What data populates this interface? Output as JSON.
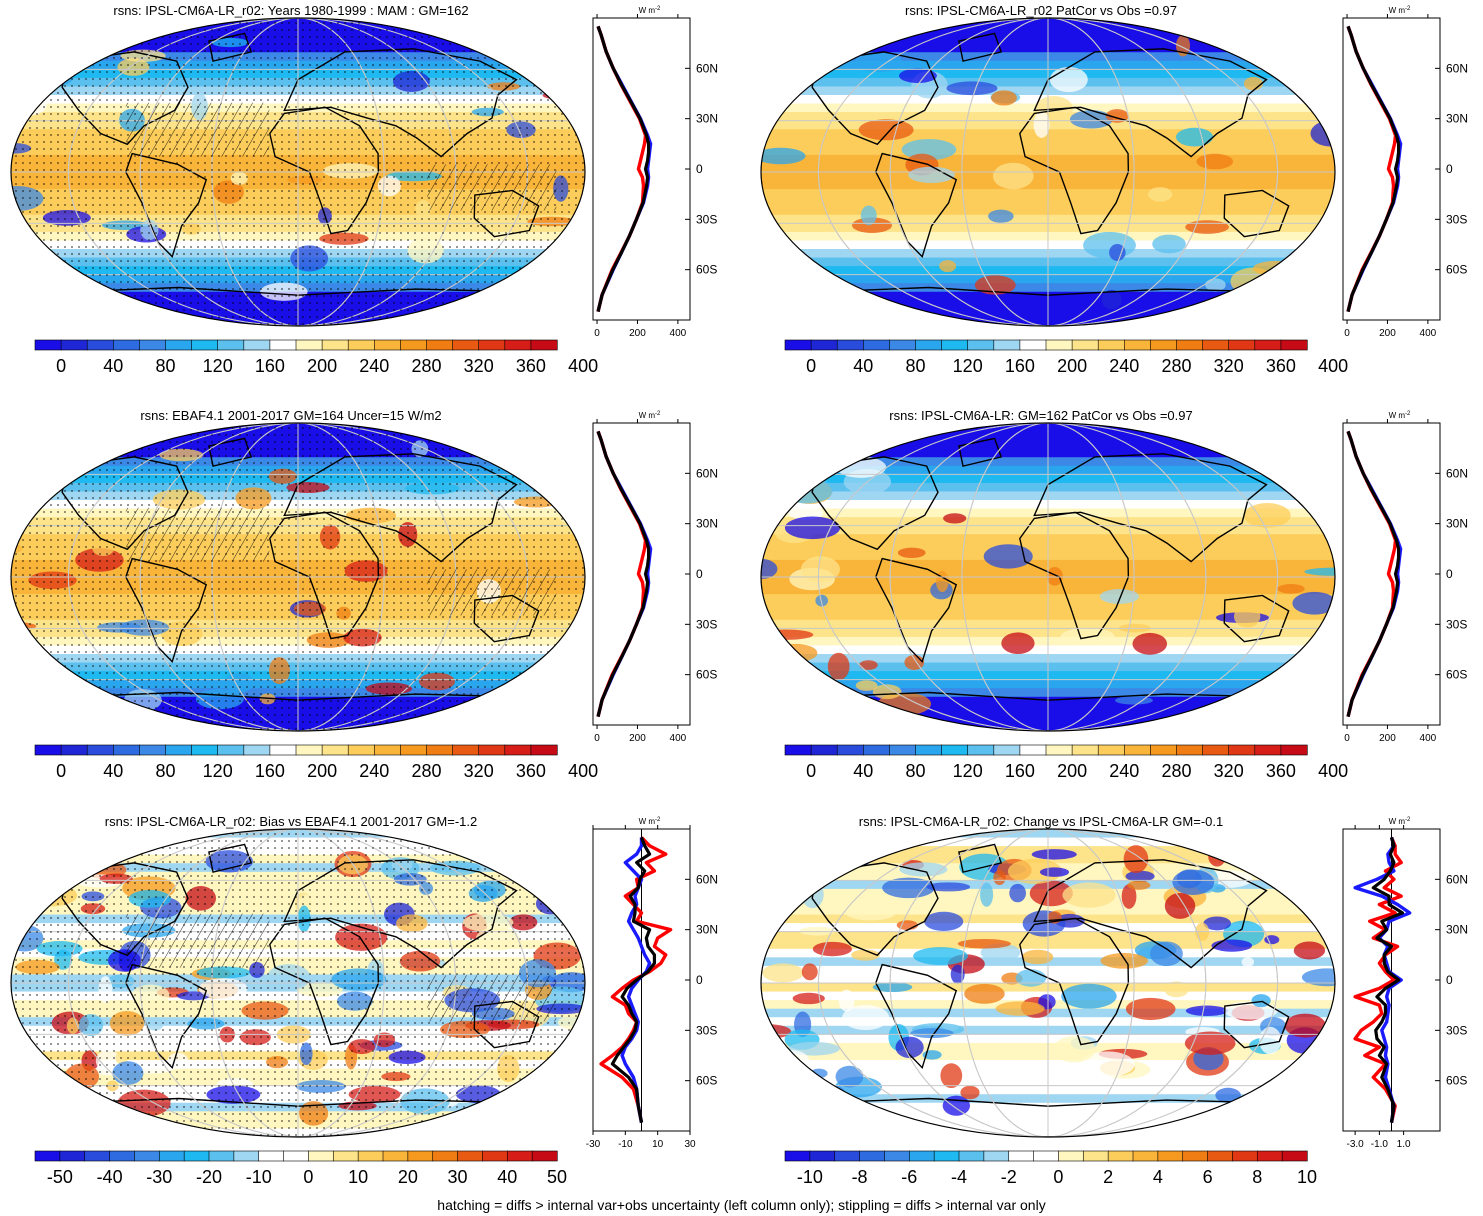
{
  "footer": "hatching = diffs > internal var+obs uncertainty (left column only); stippling = diffs > internal var only",
  "palettes": {
    "full": [
      "#1a0ee8",
      "#1f26d6",
      "#2a4cdd",
      "#2f6be0",
      "#3b88e6",
      "#2aa6ee",
      "#1db9f0",
      "#5cc0ee",
      "#9fd6f2",
      "#ffffff",
      "#fff7bf",
      "#fde389",
      "#fccd5a",
      "#f9b43a",
      "#f59a1f",
      "#ef7d13",
      "#e85a12",
      "#e03814",
      "#d61d18",
      "#c60b16"
    ],
    "diff": [
      "#1a0ee8",
      "#1f26d6",
      "#2a4cdd",
      "#2f6be0",
      "#3b88e6",
      "#2aa6ee",
      "#1db9f0",
      "#5cc0ee",
      "#9fd6f2",
      "#ffffff",
      "#ffffff",
      "#fff7bf",
      "#fde389",
      "#fccd5a",
      "#f9b43a",
      "#f59a1f",
      "#ef7d13",
      "#e85a12",
      "#e03814",
      "#d61d18",
      "#c60b16"
    ]
  },
  "zonal_axes": {
    "unit_label": "W m",
    "unit_sup": "-2",
    "lat_ticks": [
      {
        "label": "60N",
        "lat": 60
      },
      {
        "label": "30N",
        "lat": 30
      },
      {
        "label": "0",
        "lat": 0
      },
      {
        "label": "30S",
        "lat": -30
      },
      {
        "label": "60S",
        "lat": -60
      }
    ]
  },
  "chart_data": [
    {
      "type": "heatmap",
      "id": "p1",
      "title": "rsns: IPSL-CM6A-LR_r02: Years 1980-1999 : MAM : GM=162",
      "colorbar": {
        "palette": "full",
        "labels": [
          "0",
          "40",
          "80",
          "120",
          "160",
          "200",
          "240",
          "280",
          "320",
          "360",
          "400"
        ]
      },
      "stipple": true,
      "hatch": true,
      "zonal": {
        "xlim": [
          -20,
          460
        ],
        "xticks": [
          "0",
          "200",
          "400"
        ],
        "xtick_values": [
          0,
          200,
          400
        ],
        "lat": [
          -85,
          -75,
          -60,
          -50,
          -40,
          -30,
          -20,
          -10,
          -5,
          0,
          5,
          10,
          15,
          20,
          30,
          40,
          50,
          60,
          70,
          80,
          85
        ],
        "series": [
          {
            "color": "#1a1aff",
            "values": [
              5,
              25,
              80,
              120,
              160,
              195,
              230,
              250,
              255,
              250,
              255,
              260,
              265,
              250,
              215,
              170,
              125,
              80,
              45,
              20,
              5
            ]
          },
          {
            "color": "#ff0000",
            "values": [
              5,
              25,
              75,
              118,
              160,
              195,
              225,
              230,
              225,
              205,
              215,
              225,
              235,
              240,
              210,
              165,
              120,
              80,
              45,
              20,
              5
            ]
          },
          {
            "color": "#000000",
            "values": [
              5,
              25,
              78,
              120,
              160,
              195,
              228,
              245,
              250,
              240,
              250,
              255,
              255,
              245,
              213,
              168,
              122,
              80,
              45,
              20,
              5
            ]
          }
        ]
      }
    },
    {
      "type": "heatmap",
      "id": "p2",
      "title": "rsns: IPSL-CM6A-LR_r02 PatCor vs Obs =0.97",
      "colorbar": {
        "palette": "full",
        "labels": [
          "0",
          "40",
          "80",
          "120",
          "160",
          "200",
          "240",
          "280",
          "320",
          "360",
          "400"
        ]
      },
      "stipple": false,
      "hatch": false,
      "zonal": {
        "xlim": [
          -20,
          460
        ],
        "xticks": [
          "0",
          "200",
          "400"
        ],
        "xtick_values": [
          0,
          200,
          400
        ],
        "lat": [
          -85,
          -75,
          -60,
          -50,
          -40,
          -30,
          -20,
          -10,
          -5,
          0,
          5,
          10,
          15,
          20,
          30,
          40,
          50,
          60,
          70,
          80,
          85
        ],
        "series": [
          {
            "color": "#1a1aff",
            "values": [
              5,
              25,
              80,
              120,
              160,
              195,
              230,
              250,
              255,
              250,
              255,
              260,
              265,
              250,
              215,
              170,
              125,
              80,
              45,
              20,
              5
            ]
          },
          {
            "color": "#ff0000",
            "values": [
              5,
              25,
              75,
              118,
              160,
              195,
              225,
              230,
              225,
              205,
              215,
              225,
              235,
              240,
              210,
              165,
              120,
              80,
              45,
              20,
              5
            ]
          },
          {
            "color": "#000000",
            "values": [
              5,
              25,
              78,
              120,
              160,
              195,
              228,
              245,
              250,
              240,
              250,
              255,
              255,
              245,
              213,
              168,
              122,
              80,
              45,
              20,
              5
            ]
          }
        ]
      }
    },
    {
      "type": "heatmap",
      "id": "p3",
      "title": "rsns: EBAF4.1 2001-2017 GM=164 Uncer=15 W/m2",
      "colorbar": {
        "palette": "full",
        "labels": [
          "0",
          "40",
          "80",
          "120",
          "160",
          "200",
          "240",
          "280",
          "320",
          "360",
          "400"
        ]
      },
      "stipple": true,
      "hatch": true,
      "zonal": {
        "xlim": [
          -20,
          460
        ],
        "xticks": [
          "0",
          "200",
          "400"
        ],
        "xtick_values": [
          0,
          200,
          400
        ],
        "lat": [
          -85,
          -75,
          -60,
          -50,
          -40,
          -30,
          -20,
          -10,
          -5,
          0,
          5,
          10,
          15,
          20,
          30,
          40,
          50,
          60,
          70,
          80,
          85
        ],
        "series": [
          {
            "color": "#1a1aff",
            "values": [
              5,
              25,
              80,
              120,
              160,
              195,
              230,
              250,
              255,
              250,
              255,
              260,
              265,
              250,
              215,
              170,
              125,
              80,
              45,
              20,
              5
            ]
          },
          {
            "color": "#ff0000",
            "values": [
              5,
              25,
              75,
              118,
              160,
              195,
              225,
              230,
              225,
              205,
              215,
              225,
              235,
              240,
              210,
              165,
              120,
              80,
              45,
              20,
              5
            ]
          },
          {
            "color": "#000000",
            "values": [
              5,
              25,
              78,
              120,
              160,
              195,
              228,
              245,
              250,
              240,
              250,
              255,
              255,
              245,
              213,
              168,
              122,
              80,
              45,
              20,
              5
            ]
          }
        ]
      }
    },
    {
      "type": "heatmap",
      "id": "p4",
      "title": "rsns: IPSL-CM6A-LR: GM=162 PatCor vs Obs =0.97",
      "colorbar": {
        "palette": "full",
        "labels": [
          "0",
          "40",
          "80",
          "120",
          "160",
          "200",
          "240",
          "280",
          "320",
          "360",
          "400"
        ]
      },
      "stipple": false,
      "hatch": false,
      "zonal": {
        "xlim": [
          -20,
          460
        ],
        "xticks": [
          "0",
          "200",
          "400"
        ],
        "xtick_values": [
          0,
          200,
          400
        ],
        "lat": [
          -85,
          -75,
          -60,
          -50,
          -40,
          -30,
          -20,
          -10,
          -5,
          0,
          5,
          10,
          15,
          20,
          30,
          40,
          50,
          60,
          70,
          80,
          85
        ],
        "series": [
          {
            "color": "#1a1aff",
            "values": [
              5,
              25,
              80,
              120,
              160,
              195,
              230,
              250,
              255,
              250,
              255,
              260,
              265,
              250,
              215,
              170,
              125,
              80,
              45,
              20,
              5
            ]
          },
          {
            "color": "#ff0000",
            "values": [
              5,
              25,
              75,
              118,
              160,
              195,
              225,
              230,
              225,
              205,
              215,
              225,
              235,
              240,
              210,
              165,
              120,
              80,
              45,
              20,
              5
            ]
          },
          {
            "color": "#000000",
            "values": [
              5,
              25,
              78,
              120,
              160,
              195,
              228,
              245,
              250,
              240,
              250,
              255,
              255,
              245,
              213,
              168,
              122,
              80,
              45,
              20,
              5
            ]
          }
        ]
      }
    },
    {
      "type": "heatmap",
      "id": "p5",
      "title": "rsns: IPSL-CM6A-LR_r02: Bias vs EBAF4.1 2001-2017 GM=-1.2",
      "colorbar": {
        "palette": "diff",
        "labels": [
          "-50",
          "-40",
          "-30",
          "-20",
          "-10",
          "0",
          "10",
          "20",
          "30",
          "40",
          "50"
        ]
      },
      "stipple": true,
      "hatch": true,
      "zonal": {
        "xlim": [
          -30,
          30
        ],
        "xticks": [
          "-30",
          "-10",
          "10",
          "30"
        ],
        "xtick_values": [
          -30,
          -10,
          10,
          30
        ],
        "zero_line": 0,
        "lat": [
          -85,
          -75,
          -65,
          -58,
          -50,
          -45,
          -40,
          -35,
          -30,
          -25,
          -20,
          -15,
          -10,
          -5,
          0,
          5,
          10,
          15,
          20,
          25,
          30,
          35,
          40,
          45,
          50,
          55,
          60,
          65,
          70,
          75,
          80,
          85
        ],
        "series": [
          {
            "color": "#ff0000",
            "values": [
              0,
              -2,
              -5,
              -12,
              -25,
              -18,
              -12,
              -8,
              -5,
              -3,
              -8,
              -10,
              -18,
              -12,
              -5,
              5,
              12,
              15,
              8,
              10,
              18,
              -3,
              0,
              -5,
              -10,
              -2,
              -3,
              8,
              3,
              15,
              5,
              0
            ]
          },
          {
            "color": "#1a1aff",
            "values": [
              0,
              -2,
              -3,
              -5,
              -10,
              -12,
              -10,
              -6,
              -3,
              -2,
              -4,
              -6,
              -8,
              -6,
              -2,
              3,
              5,
              2,
              0,
              -2,
              -5,
              -8,
              -6,
              -3,
              -4,
              -2,
              0,
              -5,
              -10,
              -3,
              0,
              0
            ]
          },
          {
            "color": "#000000",
            "values": [
              0,
              -2,
              -3,
              -8,
              -18,
              -15,
              -11,
              -7,
              -4,
              -3,
              -6,
              -8,
              -12,
              -9,
              -3,
              4,
              8,
              8,
              4,
              3,
              5,
              -5,
              -4,
              -4,
              -7,
              -2,
              -1,
              2,
              -3,
              5,
              2,
              0
            ]
          }
        ]
      }
    },
    {
      "type": "heatmap",
      "id": "p6",
      "title": "rsns: IPSL-CM6A-LR_r02: Change vs IPSL-CM6A-LR GM=-0.1",
      "colorbar": {
        "palette": "diff",
        "labels": [
          "-10",
          "-8",
          "-6",
          "-4",
          "-2",
          "0",
          "2",
          "4",
          "6",
          "8",
          "10"
        ]
      },
      "stipple": false,
      "hatch": false,
      "zonal": {
        "xlim": [
          -4,
          4
        ],
        "xticks": [
          "-3.0",
          "-1.0",
          "1.0"
        ],
        "xtick_values": [
          -3,
          -1,
          1
        ],
        "zero_line": 0,
        "lat": [
          -85,
          -75,
          -65,
          -58,
          -50,
          -45,
          -40,
          -35,
          -30,
          -25,
          -20,
          -15,
          -10,
          -5,
          0,
          5,
          10,
          15,
          20,
          25,
          30,
          35,
          40,
          45,
          50,
          55,
          60,
          65,
          70,
          75,
          80,
          85
        ],
        "series": [
          {
            "color": "#ff0000",
            "values": [
              0,
              0.3,
              -0.5,
              -1.5,
              -0.5,
              -2.2,
              -1.0,
              -3.0,
              -2.5,
              -1.5,
              -0.8,
              -1.0,
              -3.0,
              -1.0,
              0.2,
              -0.5,
              -1.0,
              -0.5,
              0.5,
              -1.5,
              -0.5,
              -1.8,
              0.3,
              -1.0,
              0.8,
              -0.6,
              0.2,
              -0.5,
              0.8,
              0.3,
              0.3,
              0
            ]
          },
          {
            "color": "#1a1aff",
            "values": [
              0,
              0.2,
              -0.2,
              -0.5,
              -0.3,
              -0.5,
              -0.4,
              -0.6,
              -0.8,
              -0.4,
              -0.3,
              -0.2,
              -0.4,
              -0.2,
              0.8,
              -0.2,
              -0.4,
              -0.6,
              -0.3,
              -1.0,
              -0.4,
              -0.2,
              1.5,
              0.5,
              -0.8,
              -3.0,
              -1.2,
              0.2,
              -0.2,
              -0.3,
              0.2,
              0
            ]
          },
          {
            "color": "#000000",
            "values": [
              0,
              0.2,
              -0.3,
              -0.8,
              -0.4,
              -1.0,
              -0.6,
              -1.2,
              -1.3,
              -0.8,
              -0.5,
              -0.5,
              -1.2,
              -0.5,
              0.6,
              -0.3,
              -0.6,
              -0.6,
              0.0,
              -1.2,
              -0.4,
              -0.8,
              0.9,
              -0.2,
              -0.2,
              -1.5,
              -0.6,
              -0.1,
              0.2,
              -0.1,
              0.2,
              0
            ]
          }
        ]
      }
    }
  ]
}
